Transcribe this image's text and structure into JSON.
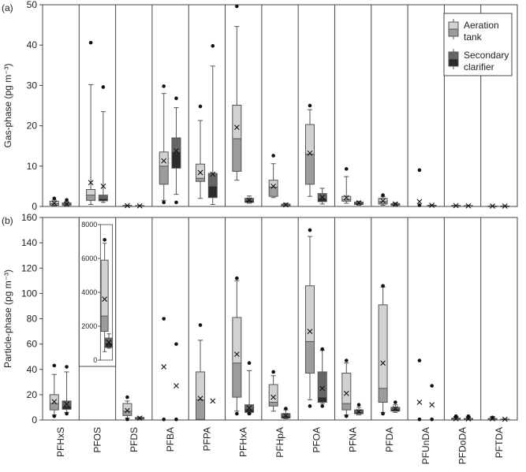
{
  "chart_data": [
    {
      "type": "box",
      "panel_label": "(a)",
      "ylabel": "Gas-phase (pg m⁻³)",
      "ylim": [
        0,
        50
      ],
      "yticks": [
        0,
        10,
        20,
        30,
        40,
        50
      ],
      "categories": [
        "PFHxS",
        "PFOS",
        "PFDS",
        "PFBA",
        "PFPA",
        "PFHxA",
        "PFHpA",
        "PFOA",
        "PFNA",
        "PFDA",
        "PFUnDA",
        "PFDoDA",
        "PFTDA"
      ],
      "legend": {
        "position": "top-right",
        "entries": [
          {
            "name": "Aeration tank",
            "lines": [
              "Aeration",
              "tank"
            ]
          },
          {
            "name": "Secondary clarifier",
            "lines": [
              "Secondary",
              "clarifier"
            ]
          }
        ]
      },
      "series": [
        {
          "name": "Aeration tank",
          "boxes": [
            {
              "category": "PFHxS",
              "min": 0.2,
              "q1": 0.3,
              "median": 0.7,
              "q3": 1.3,
              "max": 1.6,
              "mean": 0.8,
              "outliers": [
                2.0
              ]
            },
            {
              "category": "PFOS",
              "min": 0.5,
              "q1": 1.5,
              "median": 2.8,
              "q3": 4.2,
              "max": 30.2,
              "mean": 5.9,
              "outliers": [
                40.6
              ]
            },
            {
              "category": "PFDS",
              "min": 0.05,
              "q1": 0.1,
              "median": 0.15,
              "q3": 0.25,
              "max": 0.3,
              "mean": 0.2,
              "outliers": []
            },
            {
              "category": "PFBA",
              "min": 1.5,
              "q1": 5.5,
              "median": 10.0,
              "q3": 13.5,
              "max": 28.0,
              "mean": 11.3,
              "outliers": [
                29.8,
                1.0
              ]
            },
            {
              "category": "PFPA",
              "min": 2.0,
              "q1": 6.2,
              "median": 7.0,
              "q3": 10.5,
              "max": 21.3,
              "mean": 8.4,
              "outliers": [
                24.8
              ]
            },
            {
              "category": "PFHxA",
              "min": 6.5,
              "q1": 8.7,
              "median": 16.8,
              "q3": 25.1,
              "max": 44.6,
              "mean": 19.6,
              "outliers": [
                49.6
              ]
            },
            {
              "category": "PFHpA",
              "min": 2.2,
              "q1": 2.5,
              "median": 4.8,
              "q3": 6.5,
              "max": 10.6,
              "mean": 5.0,
              "outliers": [
                12.6
              ]
            },
            {
              "category": "PFOA",
              "min": 2.5,
              "q1": 5.5,
              "median": 13.0,
              "q3": 20.3,
              "max": 24.0,
              "mean": 13.2,
              "outliers": [
                25.0
              ]
            },
            {
              "category": "PFNA",
              "min": 0.8,
              "q1": 1.3,
              "median": 1.7,
              "q3": 2.5,
              "max": 7.4,
              "mean": 2.2,
              "outliers": [
                9.3
              ]
            },
            {
              "category": "PFDA",
              "min": 0.3,
              "q1": 0.6,
              "median": 1.2,
              "q3": 2.0,
              "max": 2.4,
              "mean": 1.4,
              "outliers": [
                2.8
              ]
            },
            {
              "category": "PFUnDA",
              "min": null,
              "q1": null,
              "median": null,
              "q3": null,
              "max": null,
              "mean": 1.2,
              "outliers": [
                9.0,
                0.3
              ]
            },
            {
              "category": "PFDoDA",
              "min": 0.1,
              "q1": 0.15,
              "median": 0.2,
              "q3": 0.25,
              "max": 0.3,
              "mean": 0.2,
              "outliers": []
            },
            {
              "category": "PFTDA",
              "min": 0.05,
              "q1": 0.08,
              "median": 0.1,
              "q3": 0.12,
              "max": 0.15,
              "mean": 0.1,
              "outliers": []
            }
          ]
        },
        {
          "name": "Secondary clarifier",
          "boxes": [
            {
              "category": "PFHxS",
              "min": 0.2,
              "q1": 0.3,
              "median": 0.5,
              "q3": 0.9,
              "max": 1.2,
              "mean": 0.6,
              "outliers": [
                1.6
              ]
            },
            {
              "category": "PFOS",
              "min": 1.0,
              "q1": 1.4,
              "median": 1.9,
              "q3": 2.8,
              "max": 23.5,
              "mean": 5.0,
              "outliers": [
                29.6
              ]
            },
            {
              "category": "PFDS",
              "min": 0.05,
              "q1": 0.1,
              "median": 0.15,
              "q3": 0.2,
              "max": 0.25,
              "mean": 0.15,
              "outliers": []
            },
            {
              "category": "PFBA",
              "min": 3.0,
              "q1": 9.5,
              "median": 13.5,
              "q3": 17.0,
              "max": 24.5,
              "mean": 13.8,
              "outliers": [
                26.8,
                1.0
              ]
            },
            {
              "category": "PFPA",
              "min": 0.5,
              "q1": 2.2,
              "median": 5.0,
              "q3": 8.2,
              "max": 34.8,
              "mean": 8.0,
              "outliers": [
                39.8
              ]
            },
            {
              "category": "PFHxA",
              "min": 0.8,
              "q1": 1.0,
              "median": 1.5,
              "q3": 2.0,
              "max": 2.6,
              "mean": 1.6,
              "outliers": []
            },
            {
              "category": "PFHpA",
              "min": 0.1,
              "q1": 0.2,
              "median": 0.3,
              "q3": 0.6,
              "max": 0.8,
              "mean": 0.4,
              "outliers": []
            },
            {
              "category": "PFOA",
              "min": 0.6,
              "q1": 1.2,
              "median": 2.0,
              "q3": 3.2,
              "max": 4.5,
              "mean": 2.3,
              "outliers": []
            },
            {
              "category": "PFNA",
              "min": 0.3,
              "q1": 0.5,
              "median": 0.8,
              "q3": 1.1,
              "max": 1.3,
              "mean": 0.9,
              "outliers": []
            },
            {
              "category": "PFDA",
              "min": 0.2,
              "q1": 0.3,
              "median": 0.5,
              "q3": 0.7,
              "max": 0.9,
              "mean": 0.6,
              "outliers": []
            },
            {
              "category": "PFUnDA",
              "min": 0.1,
              "q1": 0.15,
              "median": 0.2,
              "q3": 0.3,
              "max": 0.4,
              "mean": 0.3,
              "outliers": []
            },
            {
              "category": "PFDoDA",
              "min": 0.05,
              "q1": 0.1,
              "median": 0.15,
              "q3": 0.2,
              "max": 0.25,
              "mean": 0.15,
              "outliers": []
            },
            {
              "category": "PFTDA",
              "min": 0.05,
              "q1": 0.08,
              "median": 0.1,
              "q3": 0.12,
              "max": 0.15,
              "mean": 0.1,
              "outliers": []
            }
          ]
        }
      ],
      "colors": {
        "aeration_box": "#d2d2d2",
        "aeration_below_median": "#9c9c9c",
        "clarifier_box": "#666666",
        "clarifier_below_median": "#2b2b2b",
        "outline": "#555555"
      }
    },
    {
      "type": "box",
      "panel_label": "(b)",
      "ylabel": "Particle-phase (pg m⁻³)",
      "ylim": [
        0,
        160
      ],
      "yticks": [
        0,
        20,
        40,
        60,
        80,
        100,
        120,
        140,
        160
      ],
      "categories": [
        "PFHxS",
        "PFOS",
        "PFDS",
        "PFBA",
        "PFPA",
        "PFHxA",
        "PFHpA",
        "PFOA",
        "PFNA",
        "PFDA",
        "PFUnDA",
        "PFDoDA",
        "PFTDA"
      ],
      "series": [
        {
          "name": "Aeration tank",
          "boxes": [
            {
              "category": "PFHxS",
              "min": 4.0,
              "q1": 8.0,
              "median": 13.0,
              "q3": 20.0,
              "max": 36.0,
              "mean": 14.5,
              "outliers": [
                43.0,
                3.0
              ]
            },
            {
              "category": "PFOS",
              "min": null,
              "q1": null,
              "median": null,
              "q3": null,
              "max": null,
              "mean": null,
              "outliers": []
            },
            {
              "category": "PFDS",
              "min": 1.5,
              "q1": 3.5,
              "median": 7.0,
              "q3": 13.0,
              "max": 15.0,
              "mean": 7.5,
              "outliers": [
                18.0,
                0.5
              ]
            },
            {
              "category": "PFBA",
              "min": null,
              "q1": null,
              "median": null,
              "q3": null,
              "max": null,
              "mean": 42.0,
              "outliers": [
                80.0,
                0.5
              ]
            },
            {
              "category": "PFPA",
              "min": 0.5,
              "q1": 0.5,
              "median": 16.0,
              "q3": 38.0,
              "max": 63.0,
              "mean": 17.0,
              "outliers": [
                75.0
              ]
            },
            {
              "category": "PFHxA",
              "min": 7.0,
              "q1": 18.0,
              "median": 45.0,
              "q3": 81.0,
              "max": 110.0,
              "mean": 52.0,
              "outliers": [
                112.0,
                5.0
              ]
            },
            {
              "category": "PFHpA",
              "min": 7.0,
              "q1": 11.0,
              "median": 14.0,
              "q3": 28.0,
              "max": 35.0,
              "mean": 18.0,
              "outliers": [
                38.0
              ]
            },
            {
              "category": "PFOA",
              "min": 16.0,
              "q1": 37.0,
              "median": 62.0,
              "q3": 106.0,
              "max": 145.0,
              "mean": 70.0,
              "outliers": [
                150.0,
                11.0
              ]
            },
            {
              "category": "PFNA",
              "min": 4.0,
              "q1": 8.0,
              "median": 13.0,
              "q3": 37.0,
              "max": 45.0,
              "mean": 21.0,
              "outliers": [
                47.0,
                3.0
              ]
            },
            {
              "category": "PFDA",
              "min": 6.0,
              "q1": 14.0,
              "median": 25.0,
              "q3": 91.0,
              "max": 105.0,
              "mean": 45.0,
              "outliers": [
                106.0,
                5.0
              ]
            },
            {
              "category": "PFUnDA",
              "min": null,
              "q1": null,
              "median": null,
              "q3": null,
              "max": null,
              "mean": 14.0,
              "outliers": [
                47.0,
                0.5
              ]
            },
            {
              "category": "PFDoDA",
              "min": 0.3,
              "q1": 0.5,
              "median": 1.0,
              "q3": 1.5,
              "max": 2.0,
              "mean": 1.0,
              "outliers": [
                3.0
              ]
            },
            {
              "category": "PFTDA",
              "min": 0.3,
              "q1": 0.5,
              "median": 0.8,
              "q3": 1.2,
              "max": 1.8,
              "mean": 1.0,
              "outliers": [
                2.0
              ]
            }
          ]
        },
        {
          "name": "Secondary clarifier",
          "boxes": [
            {
              "category": "PFHxS",
              "min": 6.0,
              "q1": 8.5,
              "median": 11.0,
              "q3": 15.0,
              "max": 38.0,
              "mean": 12.5,
              "outliers": [
                42.0,
                5.0
              ]
            },
            {
              "category": "PFOS",
              "min": null,
              "q1": null,
              "median": null,
              "q3": null,
              "max": null,
              "mean": null,
              "outliers": []
            },
            {
              "category": "PFDS",
              "min": 0.3,
              "q1": 0.8,
              "median": 1.3,
              "q3": 2.0,
              "max": 2.5,
              "mean": 1.5,
              "outliers": []
            },
            {
              "category": "PFBA",
              "min": null,
              "q1": null,
              "median": null,
              "q3": null,
              "max": null,
              "mean": 27.0,
              "outliers": [
                60.0,
                0.5
              ]
            },
            {
              "category": "PFPA",
              "min": null,
              "q1": null,
              "median": null,
              "q3": null,
              "max": null,
              "mean": 15.0,
              "outliers": []
            },
            {
              "category": "PFHxA",
              "min": 5.0,
              "q1": 6.0,
              "median": 8.5,
              "q3": 12.0,
              "max": 39.0,
              "mean": 9.5,
              "outliers": [
                45.0,
                5.0
              ]
            },
            {
              "category": "PFHpA",
              "min": 1.0,
              "q1": 1.5,
              "median": 3.0,
              "q3": 5.0,
              "max": 8.0,
              "mean": 3.5,
              "outliers": [
                9.0
              ]
            },
            {
              "category": "PFOA",
              "min": 13.0,
              "q1": 14.0,
              "median": 18.0,
              "q3": 38.0,
              "max": 55.0,
              "mean": 25.0,
              "outliers": [
                56.0,
                11.0
              ]
            },
            {
              "category": "PFNA",
              "min": 4.0,
              "q1": 5.0,
              "median": 6.0,
              "q3": 8.0,
              "max": 10.0,
              "mean": 6.5,
              "outliers": [
                12.0
              ]
            },
            {
              "category": "PFDA",
              "min": 6.0,
              "q1": 7.0,
              "median": 8.5,
              "q3": 10.0,
              "max": 12.0,
              "mean": 9.0,
              "outliers": [
                14.0
              ]
            },
            {
              "category": "PFUnDA",
              "min": null,
              "q1": null,
              "median": null,
              "q3": null,
              "max": null,
              "mean": 12.0,
              "outliers": [
                27.0,
                0.5
              ]
            },
            {
              "category": "PFDoDA",
              "min": 0.3,
              "q1": 0.5,
              "median": 0.8,
              "q3": 1.2,
              "max": 1.6,
              "mean": 0.9,
              "outliers": [
                3.0
              ]
            },
            {
              "category": "PFTDA",
              "min": 0.2,
              "q1": 0.3,
              "median": 0.5,
              "q3": 0.7,
              "max": 0.9,
              "mean": 0.6,
              "outliers": []
            }
          ]
        }
      ],
      "inset": {
        "category": "PFOS",
        "ylim": [
          0,
          8000
        ],
        "yticks": [
          0,
          2000,
          4000,
          6000,
          8000
        ],
        "series": [
          {
            "name": "Aeration tank",
            "box": {
              "min": 500,
              "q1": 1700,
              "median": 2600,
              "q3": 5900,
              "max": 6900,
              "mean": 3600,
              "outliers": [
                7100
              ]
            }
          },
          {
            "name": "Secondary clarifier",
            "box": {
              "min": 700,
              "q1": 750,
              "median": 1000,
              "q3": 1300,
              "max": 1550,
              "mean": 1050,
              "outliers": []
            }
          }
        ]
      }
    }
  ]
}
